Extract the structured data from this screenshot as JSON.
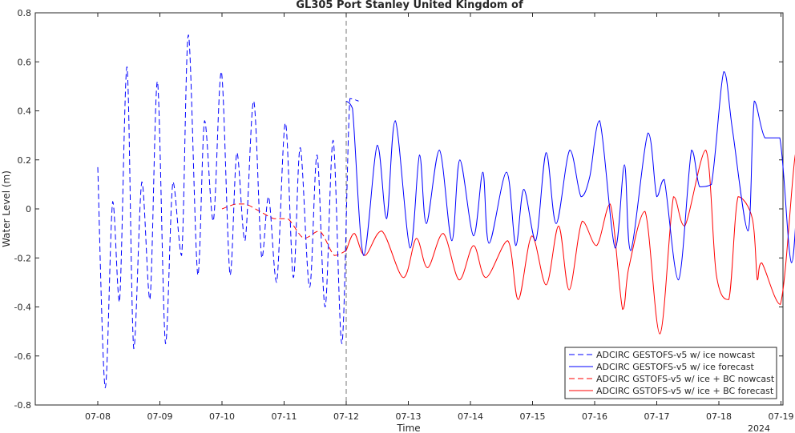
{
  "chart_data": {
    "type": "line",
    "title": "GL305 Port Stanley United Kingdom of",
    "xlabel": "Time",
    "ylabel": "Water Level (m)",
    "year_label": "2024",
    "xlim": [
      "07-07 04:00",
      "07-19 00:00"
    ],
    "ylim": [
      -0.8,
      0.8
    ],
    "yticks": [
      -0.8,
      -0.6,
      -0.4,
      -0.2,
      0,
      0.2,
      0.4,
      0.6,
      0.8
    ],
    "xticks": [
      "07-08",
      "07-09",
      "07-10",
      "07-11",
      "07-12",
      "07-13",
      "07-14",
      "07-15",
      "07-16",
      "07-17",
      "07-18",
      "07-19"
    ],
    "nowcast_end": "07-12",
    "grid": false,
    "legend_position": "bottom-right",
    "series": [
      {
        "name": "ADCIRC GESTOFS-v5 w/ ice nowcast",
        "color": "#0000ff",
        "dash": true,
        "x_days": [
          0.0,
          0.12,
          0.24,
          0.35,
          0.47,
          0.58,
          0.71,
          0.84,
          0.96,
          1.09,
          1.21,
          1.35,
          1.46,
          1.61,
          1.72,
          1.86,
          1.99,
          2.13,
          2.24,
          2.37,
          2.51,
          2.64,
          2.75,
          2.88,
          3.02,
          3.15,
          3.26,
          3.41,
          3.53,
          3.66,
          3.79,
          3.93,
          4.06,
          4.2
        ],
        "y": [
          0.17,
          -0.73,
          0.03,
          -0.38,
          0.58,
          -0.57,
          0.11,
          -0.37,
          0.52,
          -0.55,
          0.11,
          -0.19,
          0.71,
          -0.27,
          0.36,
          -0.05,
          0.56,
          -0.27,
          0.23,
          -0.13,
          0.44,
          -0.2,
          0.05,
          -0.3,
          0.35,
          -0.28,
          0.25,
          -0.32,
          0.22,
          -0.4,
          0.28,
          -0.55,
          0.45,
          0.44
        ]
      },
      {
        "name": "ADCIRC GESTOFS-v5 w/ ice forecast",
        "color": "#0000ff",
        "dash": false,
        "x_days": [
          4.0,
          4.1,
          4.28,
          4.5,
          4.65,
          4.79,
          5.03,
          5.18,
          5.29,
          5.5,
          5.7,
          5.83,
          6.05,
          6.2,
          6.3,
          6.58,
          6.73,
          6.86,
          7.05,
          7.22,
          7.38,
          7.6,
          7.78,
          7.92,
          8.08,
          8.33,
          8.48,
          8.58,
          8.86,
          9.0,
          9.12,
          9.35,
          9.56,
          9.69,
          9.88,
          10.08,
          10.22,
          10.47,
          10.57,
          10.74,
          10.98,
          11.17,
          11.32,
          11.52,
          11.7
        ],
        "y": [
          0.44,
          0.41,
          -0.19,
          0.26,
          -0.04,
          0.36,
          -0.16,
          0.22,
          -0.06,
          0.24,
          -0.13,
          0.2,
          -0.11,
          0.15,
          -0.14,
          0.15,
          -0.15,
          0.08,
          -0.13,
          0.23,
          -0.06,
          0.24,
          0.05,
          0.13,
          0.36,
          -0.16,
          0.18,
          -0.17,
          0.31,
          0.05,
          0.12,
          -0.29,
          0.24,
          0.09,
          0.1,
          0.56,
          0.32,
          -0.09,
          0.44,
          0.29,
          0.29,
          -0.22,
          0.22,
          0.19,
          0.17
        ]
      },
      {
        "name": "ADCIRC GSTOFS-v5 w/ ice + BC nowcast",
        "color": "#ff0000",
        "dash": true,
        "x_days": [
          2.0,
          2.22,
          2.38,
          2.61,
          2.84,
          3.06,
          3.32,
          3.57,
          3.81,
          4.0
        ],
        "y": [
          0.0,
          0.02,
          0.02,
          -0.01,
          -0.04,
          -0.04,
          -0.12,
          -0.09,
          -0.19,
          -0.17
        ]
      },
      {
        "name": "ADCIRC GSTOFS-v5 w/ ice + BC forecast",
        "color": "#ff0000",
        "dash": false,
        "x_days": [
          4.0,
          4.13,
          4.3,
          4.57,
          4.92,
          5.13,
          5.31,
          5.56,
          5.82,
          6.05,
          6.25,
          6.6,
          6.77,
          6.99,
          7.22,
          7.42,
          7.59,
          7.8,
          8.03,
          8.25,
          8.45,
          8.55,
          8.81,
          9.05,
          9.27,
          9.45,
          9.79,
          9.96,
          10.16,
          10.31,
          10.54,
          10.62,
          10.69,
          10.99,
          11.23,
          11.33
        ],
        "y": [
          -0.17,
          -0.1,
          -0.19,
          -0.09,
          -0.28,
          -0.12,
          -0.24,
          -0.1,
          -0.29,
          -0.15,
          -0.28,
          -0.13,
          -0.37,
          -0.11,
          -0.31,
          -0.07,
          -0.33,
          -0.05,
          -0.15,
          0.02,
          -0.41,
          -0.24,
          -0.01,
          -0.51,
          0.05,
          -0.07,
          0.24,
          -0.27,
          -0.37,
          0.05,
          -0.04,
          -0.29,
          -0.22,
          -0.39,
          0.22,
          0.13
        ]
      }
    ]
  }
}
